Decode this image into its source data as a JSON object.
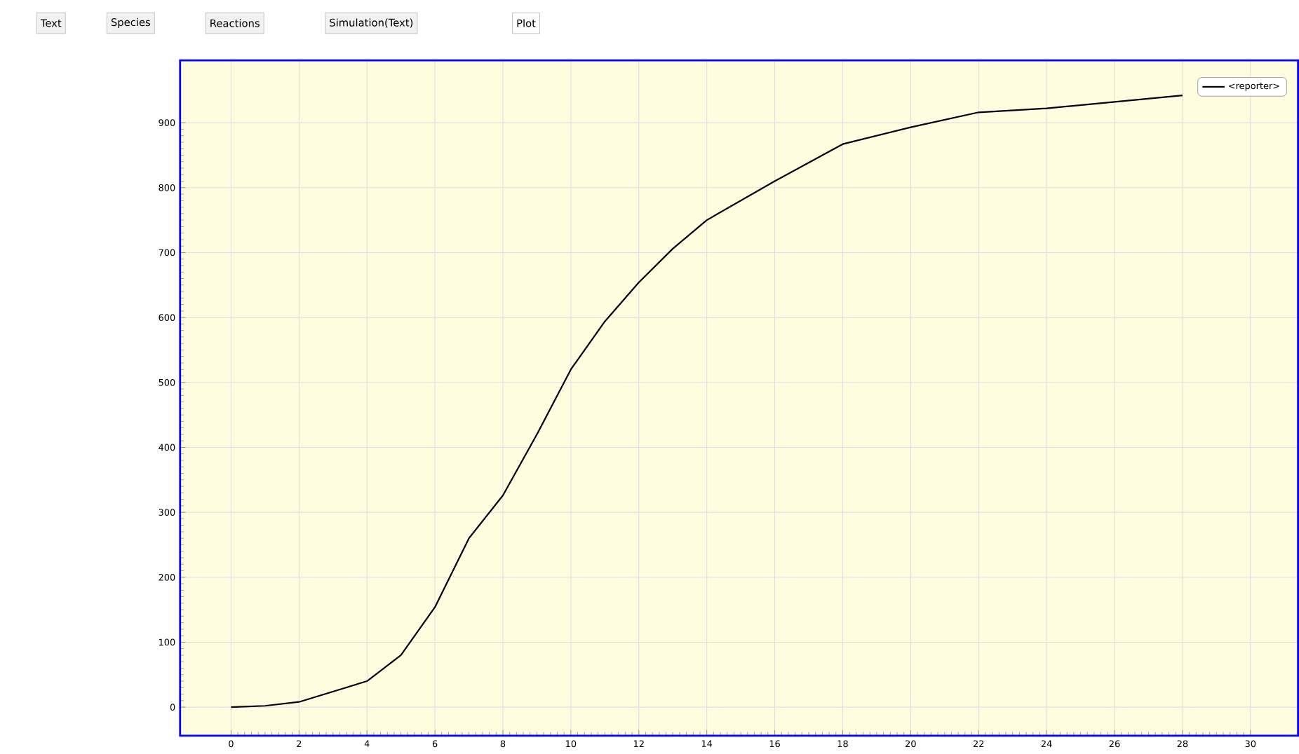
{
  "chart_data": {
    "type": "line",
    "annotations": [
      "Text",
      "Species",
      "Reactions",
      "Simulation(Text)",
      "Plot"
    ],
    "xlim": [
      -1.5,
      31.4
    ],
    "ylim": [
      -44,
      996
    ],
    "xticks": [
      0,
      2,
      4,
      6,
      8,
      10,
      12,
      14,
      16,
      18,
      20,
      22,
      24,
      26,
      28,
      30
    ],
    "yticks": [
      0,
      100,
      200,
      300,
      400,
      500,
      600,
      700,
      800,
      900
    ],
    "grid": true,
    "legend": "top right",
    "series": [
      {
        "name": "<reporter>",
        "color": "#000000",
        "x": [
          0,
          1,
          2,
          3,
          4,
          5,
          6,
          7,
          8,
          9,
          10,
          11,
          12,
          13,
          14,
          16,
          18,
          20,
          22,
          24,
          26,
          28
        ],
        "values": [
          0,
          2,
          8,
          24,
          40,
          80,
          154,
          260,
          326,
          420,
          520,
          594,
          654,
          706,
          750,
          810,
          867,
          893,
          916,
          922,
          932,
          942
        ]
      }
    ]
  }
}
